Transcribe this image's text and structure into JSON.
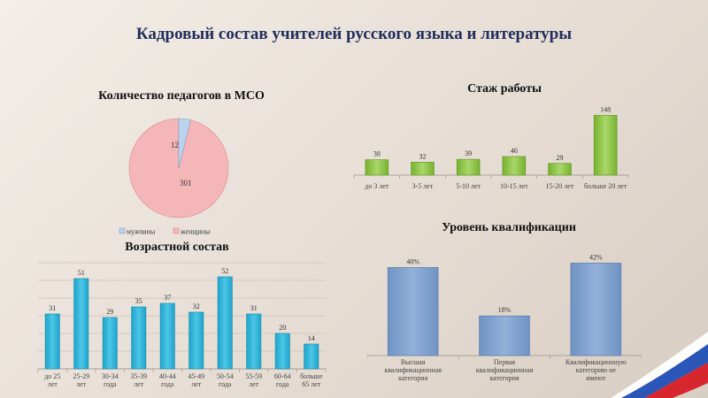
{
  "slide_title": "Кадровый состав учителей русского языка и литературы",
  "colors": {
    "title": "#1f2d5a",
    "pie_men": "#bcd3ee",
    "pie_women": "#f4b6b8",
    "green_bar": "#8cc63f",
    "cyan_bar": "#2db3d6",
    "blue_bar": "#7f9ecb"
  },
  "chart_data": [
    {
      "id": "pie",
      "type": "pie",
      "title": "Количество педагогов в МСО",
      "categories": [
        "мужчины",
        "женщины"
      ],
      "values": [
        12,
        301
      ],
      "legend": "bottom"
    },
    {
      "id": "experience",
      "type": "bar",
      "title": "Стаж работы",
      "categories": [
        "до 3 лет",
        "3-5 лет",
        "5-10 лет",
        "10-15 лет",
        "15-20 лет",
        "больше 20 лет"
      ],
      "values": [
        38,
        32,
        39,
        46,
        29,
        148
      ],
      "ylim": [
        0,
        160
      ],
      "grid": false
    },
    {
      "id": "age",
      "type": "bar",
      "title": "Возрастной состав",
      "categories": [
        "до 25 лет",
        "25-29 лет",
        "30-34 года",
        "35-39 лет",
        "40-44 года",
        "45-49 лет",
        "50-54 года",
        "55-59 лет",
        "60-64 года",
        "больше 65 лет"
      ],
      "values": [
        31,
        51,
        29,
        35,
        37,
        32,
        52,
        31,
        20,
        14
      ],
      "ylim": [
        0,
        60
      ],
      "grid": true
    },
    {
      "id": "qualification",
      "type": "bar",
      "title": "Уровень квалификации",
      "categories": [
        "Высшая квалификационная категория",
        "Первая квалификационная категория",
        "Квалификационную категорию не имеют"
      ],
      "values": [
        40,
        18,
        42
      ],
      "data_labels": [
        "40%",
        "18%",
        "42%"
      ],
      "ylim": [
        0,
        45
      ],
      "grid": false
    }
  ]
}
